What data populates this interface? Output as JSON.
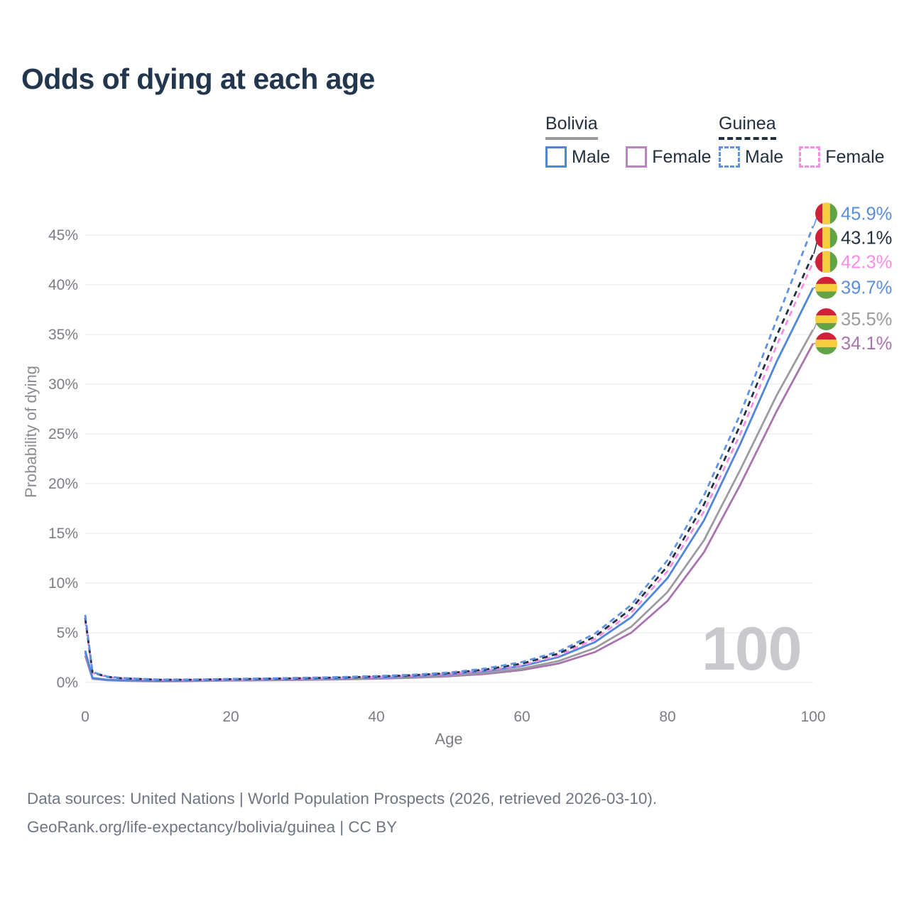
{
  "header": {
    "title": "Odds of dying at each age"
  },
  "legend": {
    "groups": [
      {
        "name": "Bolivia",
        "line_style": "solid",
        "underline_color": "#9b9b9b",
        "items": [
          {
            "label": "Male",
            "color": "#4f86da",
            "dashed": false
          },
          {
            "label": "Female",
            "color": "#b786bd",
            "dashed": false
          }
        ]
      },
      {
        "name": "Guinea",
        "line_style": "dashed",
        "underline_color": "#22303f",
        "items": [
          {
            "label": "Male",
            "color": "#5f92e2",
            "dashed": true
          },
          {
            "label": "Female",
            "color": "#fb8de4",
            "dashed": true
          }
        ]
      }
    ]
  },
  "chart_data": {
    "type": "line",
    "title": "Odds of dying at each age",
    "xlabel": "Age",
    "ylabel": "Probability of dying",
    "x_ticks": [
      0,
      20,
      40,
      60,
      80,
      100
    ],
    "y_ticks": [
      "0%",
      "5%",
      "10%",
      "15%",
      "20%",
      "25%",
      "30%",
      "35%",
      "40%",
      "45%"
    ],
    "xlim": [
      0,
      100
    ],
    "ylim": [
      0,
      47
    ],
    "grid": "horizontal",
    "grid_color": "#ebebee",
    "tick_color": "#7c7c85",
    "legend_position": "top-right",
    "watermark": "100",
    "flag_colors": {
      "red": "#cf2137",
      "yellow": "#f5ce3e",
      "green": "#62a346"
    },
    "x": [
      0,
      1,
      3,
      5,
      10,
      15,
      20,
      25,
      30,
      35,
      40,
      45,
      50,
      55,
      60,
      65,
      70,
      75,
      80,
      85,
      90,
      95,
      100
    ],
    "series": [
      {
        "id": "bolivia-female",
        "country": "Bolivia",
        "sex": "Female",
        "color": "#a873ae",
        "label_color": "#a873ae",
        "dashed": false,
        "flag": "bolivia",
        "end_label": "34.1%",
        "values": [
          2.7,
          0.37,
          0.22,
          0.17,
          0.12,
          0.15,
          0.19,
          0.22,
          0.26,
          0.31,
          0.38,
          0.47,
          0.62,
          0.86,
          1.25,
          1.9,
          3.05,
          5.0,
          8.2,
          13.1,
          19.9,
          27.3,
          34.1
        ]
      },
      {
        "id": "bolivia-total",
        "country": "Bolivia",
        "sex": "Both",
        "color": "#9b9ba1",
        "label_color": "#9a9aa0",
        "dashed": false,
        "flag": "bolivia",
        "end_label": "35.5%",
        "values": [
          3.0,
          0.41,
          0.25,
          0.19,
          0.14,
          0.17,
          0.23,
          0.26,
          0.3,
          0.35,
          0.43,
          0.53,
          0.7,
          0.97,
          1.4,
          2.15,
          3.45,
          5.6,
          9.1,
          14.3,
          21.4,
          28.9,
          35.5
        ]
      },
      {
        "id": "bolivia-male",
        "country": "Bolivia",
        "sex": "Male",
        "color": "#4f86da",
        "label_color": "#5b8dd9",
        "dashed": false,
        "flag": "bolivia",
        "end_label": "39.7%",
        "values": [
          3.2,
          0.45,
          0.28,
          0.22,
          0.16,
          0.2,
          0.27,
          0.31,
          0.36,
          0.42,
          0.5,
          0.62,
          0.82,
          1.15,
          1.65,
          2.55,
          4.05,
          6.55,
          10.5,
          16.3,
          24.0,
          32.3,
          39.7
        ]
      },
      {
        "id": "guinea-female",
        "country": "Guinea",
        "sex": "Female",
        "color": "#fb8de4",
        "label_color": "#f98ce8",
        "dashed": true,
        "flag": "guinea",
        "end_label": "42.3%",
        "values": [
          6.2,
          0.95,
          0.54,
          0.4,
          0.26,
          0.26,
          0.3,
          0.34,
          0.39,
          0.46,
          0.55,
          0.68,
          0.88,
          1.2,
          1.75,
          2.7,
          4.35,
          7.0,
          11.2,
          17.2,
          25.0,
          33.9,
          42.3
        ]
      },
      {
        "id": "guinea-total",
        "country": "Guinea",
        "sex": "Both",
        "color": "#22303f",
        "label_color": "#22303f",
        "dashed": true,
        "flag": "guinea",
        "end_label": "43.1%",
        "values": [
          6.5,
          1.0,
          0.57,
          0.42,
          0.28,
          0.28,
          0.33,
          0.38,
          0.43,
          0.5,
          0.6,
          0.73,
          0.94,
          1.3,
          1.9,
          2.9,
          4.6,
          7.4,
          11.7,
          17.9,
          25.9,
          34.9,
          43.1
        ]
      },
      {
        "id": "guinea-male",
        "country": "Guinea",
        "sex": "Male",
        "color": "#5f92e2",
        "label_color": "#5b8dd9",
        "dashed": true,
        "flag": "guinea",
        "end_label": "45.9%",
        "values": [
          6.8,
          1.05,
          0.6,
          0.45,
          0.3,
          0.3,
          0.36,
          0.41,
          0.47,
          0.54,
          0.64,
          0.78,
          1.0,
          1.4,
          2.05,
          3.1,
          4.9,
          7.8,
          12.3,
          18.8,
          27.0,
          36.5,
          45.9
        ]
      }
    ]
  },
  "footer": {
    "line1": "Data sources: United Nations | World Population Prospects (2026, retrieved 2026-03-10).",
    "line2": "GeoRank.org/life-expectancy/bolivia/guinea | CC BY"
  }
}
